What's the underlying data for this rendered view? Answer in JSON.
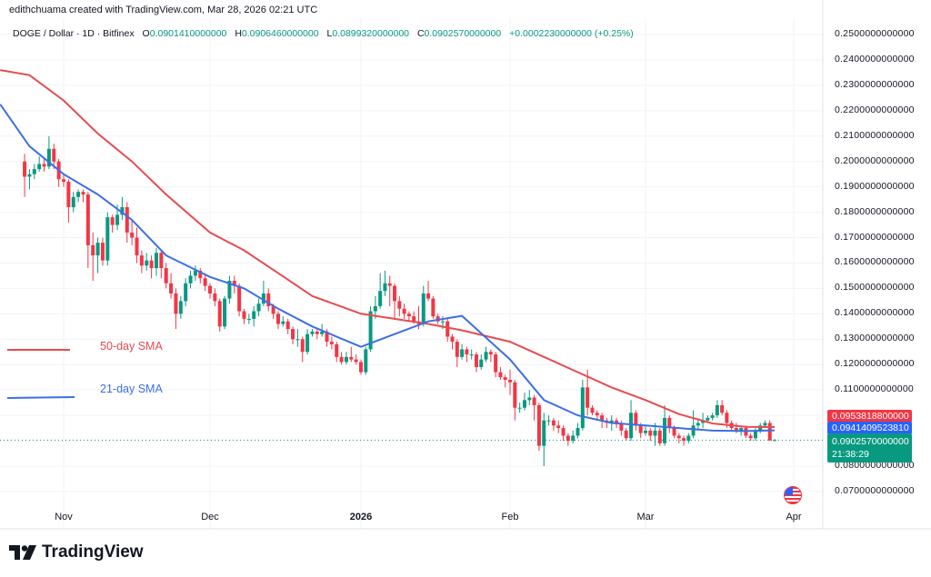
{
  "attribution": "edithchuama created with TradingView.com, Mar 28, 2026 02:21 UTC",
  "legend": {
    "symbol": "DOGE / Dollar · 1D · Bitfinex",
    "o_label": "O",
    "o": "0.0901410000000",
    "h_label": "H",
    "h": "0.0906460000000",
    "l_label": "L",
    "l": "0.0899320000000",
    "c_label": "C",
    "c": "0.0902570000000",
    "change": "+0.0002230000000 (+0.25%)"
  },
  "price_axis": [
    "0.2500000000000",
    "0.2400000000000",
    "0.2300000000000",
    "0.2200000000000",
    "0.2100000000000",
    "0.2000000000000",
    "0.1900000000000",
    "0.1800000000000",
    "0.1700000000000",
    "0.1600000000000",
    "0.1500000000000",
    "0.1400000000000",
    "0.1300000000000",
    "0.1200000000000",
    "0.1100000000000",
    "0.0800000000000",
    "0.0700000000000"
  ],
  "price_markers": {
    "sma50": "0.0953818800000",
    "sma21": "0.0941409523810",
    "last": "0.0902570000000",
    "countdown": "21:38:29"
  },
  "time_axis": [
    "Nov",
    "Dec",
    "2026",
    "Feb",
    "Mar",
    "Apr"
  ],
  "sma_labels": {
    "sma50": "50-day SMA",
    "sma21": "21-day SMA"
  },
  "logo_text": "TradingView",
  "colors": {
    "up": "#089981",
    "down": "#f23645",
    "sma50": "#e84b4f",
    "sma21": "#3b6fe6",
    "grid": "#f0f3fa"
  },
  "icons": {
    "events": "us-flag-icon",
    "logo": "tradingview-logo-icon"
  },
  "chart_data": {
    "type": "candlestick",
    "symbol": "DOGE / Dollar",
    "interval": "1D",
    "last_date": "2026-03-28",
    "ylim": [
      0.065,
      0.255
    ],
    "grid": true,
    "ohlc": [
      [
        0.2,
        0.203,
        0.186,
        0.194
      ],
      [
        0.194,
        0.197,
        0.189,
        0.195
      ],
      [
        0.195,
        0.199,
        0.193,
        0.197
      ],
      [
        0.197,
        0.202,
        0.196,
        0.199
      ],
      [
        0.199,
        0.201,
        0.196,
        0.198
      ],
      [
        0.198,
        0.21,
        0.197,
        0.205
      ],
      [
        0.205,
        0.207,
        0.197,
        0.2
      ],
      [
        0.2,
        0.201,
        0.19,
        0.193
      ],
      [
        0.193,
        0.195,
        0.19,
        0.192
      ],
      [
        0.192,
        0.193,
        0.176,
        0.182
      ],
      [
        0.182,
        0.188,
        0.18,
        0.186
      ],
      [
        0.186,
        0.189,
        0.184,
        0.188
      ],
      [
        0.188,
        0.189,
        0.184,
        0.187
      ],
      [
        0.187,
        0.188,
        0.158,
        0.167
      ],
      [
        0.167,
        0.172,
        0.153,
        0.163
      ],
      [
        0.163,
        0.17,
        0.156,
        0.168
      ],
      [
        0.168,
        0.17,
        0.159,
        0.161
      ],
      [
        0.161,
        0.18,
        0.159,
        0.178
      ],
      [
        0.178,
        0.179,
        0.172,
        0.175
      ],
      [
        0.175,
        0.183,
        0.173,
        0.179
      ],
      [
        0.179,
        0.186,
        0.177,
        0.182
      ],
      [
        0.182,
        0.184,
        0.168,
        0.172
      ],
      [
        0.172,
        0.177,
        0.167,
        0.17
      ],
      [
        0.17,
        0.174,
        0.16,
        0.163
      ],
      [
        0.163,
        0.165,
        0.156,
        0.159
      ],
      [
        0.159,
        0.164,
        0.157,
        0.161
      ],
      [
        0.161,
        0.163,
        0.154,
        0.158
      ],
      [
        0.158,
        0.166,
        0.155,
        0.164
      ],
      [
        0.164,
        0.165,
        0.154,
        0.158
      ],
      [
        0.158,
        0.16,
        0.15,
        0.152
      ],
      [
        0.152,
        0.156,
        0.146,
        0.148
      ],
      [
        0.148,
        0.15,
        0.134,
        0.14
      ],
      [
        0.14,
        0.147,
        0.138,
        0.145
      ],
      [
        0.145,
        0.154,
        0.143,
        0.152
      ],
      [
        0.152,
        0.157,
        0.15,
        0.155
      ],
      [
        0.155,
        0.159,
        0.153,
        0.157
      ],
      [
        0.157,
        0.158,
        0.152,
        0.154
      ],
      [
        0.154,
        0.156,
        0.149,
        0.151
      ],
      [
        0.151,
        0.152,
        0.146,
        0.148
      ],
      [
        0.148,
        0.15,
        0.143,
        0.145
      ],
      [
        0.145,
        0.146,
        0.133,
        0.135
      ],
      [
        0.135,
        0.147,
        0.134,
        0.146
      ],
      [
        0.146,
        0.155,
        0.144,
        0.153
      ],
      [
        0.153,
        0.155,
        0.148,
        0.151
      ],
      [
        0.151,
        0.152,
        0.139,
        0.141
      ],
      [
        0.141,
        0.142,
        0.136,
        0.138
      ],
      [
        0.138,
        0.14,
        0.136,
        0.138
      ],
      [
        0.138,
        0.143,
        0.135,
        0.141
      ],
      [
        0.141,
        0.146,
        0.139,
        0.144
      ],
      [
        0.144,
        0.153,
        0.143,
        0.148
      ],
      [
        0.148,
        0.15,
        0.141,
        0.143
      ],
      [
        0.143,
        0.144,
        0.138,
        0.14
      ],
      [
        0.14,
        0.141,
        0.134,
        0.136
      ],
      [
        0.136,
        0.139,
        0.135,
        0.137
      ],
      [
        0.137,
        0.138,
        0.132,
        0.134
      ],
      [
        0.134,
        0.135,
        0.128,
        0.13
      ],
      [
        0.13,
        0.134,
        0.127,
        0.13
      ],
      [
        0.13,
        0.131,
        0.121,
        0.125
      ],
      [
        0.125,
        0.134,
        0.124,
        0.132
      ],
      [
        0.132,
        0.134,
        0.131,
        0.133
      ],
      [
        0.133,
        0.134,
        0.13,
        0.132
      ],
      [
        0.132,
        0.136,
        0.131,
        0.133
      ],
      [
        0.133,
        0.134,
        0.127,
        0.129
      ],
      [
        0.129,
        0.131,
        0.126,
        0.128
      ],
      [
        0.128,
        0.129,
        0.121,
        0.123
      ],
      [
        0.123,
        0.125,
        0.12,
        0.121
      ],
      [
        0.121,
        0.125,
        0.12,
        0.123
      ],
      [
        0.123,
        0.127,
        0.121,
        0.122
      ],
      [
        0.122,
        0.124,
        0.12,
        0.121
      ],
      [
        0.121,
        0.122,
        0.116,
        0.117
      ],
      [
        0.117,
        0.127,
        0.116,
        0.126
      ],
      [
        0.126,
        0.143,
        0.125,
        0.141
      ],
      [
        0.141,
        0.147,
        0.138,
        0.143
      ],
      [
        0.143,
        0.156,
        0.142,
        0.149
      ],
      [
        0.149,
        0.157,
        0.147,
        0.152
      ],
      [
        0.152,
        0.155,
        0.143,
        0.151
      ],
      [
        0.151,
        0.152,
        0.138,
        0.145
      ],
      [
        0.145,
        0.147,
        0.139,
        0.142
      ],
      [
        0.142,
        0.144,
        0.138,
        0.14
      ],
      [
        0.14,
        0.141,
        0.137,
        0.139
      ],
      [
        0.139,
        0.141,
        0.136,
        0.137
      ],
      [
        0.137,
        0.143,
        0.134,
        0.136
      ],
      [
        0.136,
        0.151,
        0.135,
        0.148
      ],
      [
        0.148,
        0.153,
        0.145,
        0.146
      ],
      [
        0.146,
        0.147,
        0.138,
        0.139
      ],
      [
        0.139,
        0.14,
        0.136,
        0.137
      ],
      [
        0.137,
        0.139,
        0.134,
        0.137
      ],
      [
        0.137,
        0.138,
        0.129,
        0.131
      ],
      [
        0.131,
        0.132,
        0.126,
        0.129
      ],
      [
        0.129,
        0.13,
        0.119,
        0.123
      ],
      [
        0.123,
        0.128,
        0.122,
        0.126
      ],
      [
        0.126,
        0.127,
        0.121,
        0.124
      ],
      [
        0.124,
        0.126,
        0.122,
        0.124
      ],
      [
        0.124,
        0.125,
        0.117,
        0.119
      ],
      [
        0.119,
        0.124,
        0.118,
        0.122
      ],
      [
        0.122,
        0.127,
        0.121,
        0.125
      ],
      [
        0.125,
        0.126,
        0.121,
        0.124
      ],
      [
        0.124,
        0.125,
        0.115,
        0.117
      ],
      [
        0.117,
        0.119,
        0.114,
        0.115
      ],
      [
        0.115,
        0.116,
        0.111,
        0.114
      ],
      [
        0.114,
        0.118,
        0.108,
        0.113
      ],
      [
        0.113,
        0.114,
        0.098,
        0.103
      ],
      [
        0.103,
        0.105,
        0.101,
        0.103
      ],
      [
        0.103,
        0.109,
        0.102,
        0.106
      ],
      [
        0.106,
        0.11,
        0.104,
        0.107
      ],
      [
        0.107,
        0.108,
        0.098,
        0.104
      ],
      [
        0.104,
        0.105,
        0.086,
        0.088
      ],
      [
        0.088,
        0.101,
        0.08,
        0.098
      ],
      [
        0.098,
        0.1,
        0.096,
        0.098
      ],
      [
        0.098,
        0.099,
        0.094,
        0.096
      ],
      [
        0.096,
        0.098,
        0.093,
        0.095
      ],
      [
        0.095,
        0.096,
        0.09,
        0.092
      ],
      [
        0.092,
        0.093,
        0.088,
        0.09
      ],
      [
        0.09,
        0.094,
        0.089,
        0.092
      ],
      [
        0.092,
        0.097,
        0.091,
        0.095
      ],
      [
        0.095,
        0.114,
        0.094,
        0.111
      ],
      [
        0.111,
        0.118,
        0.1,
        0.103
      ],
      [
        0.103,
        0.104,
        0.1,
        0.101
      ],
      [
        0.101,
        0.102,
        0.098,
        0.1
      ],
      [
        0.1,
        0.101,
        0.095,
        0.098
      ],
      [
        0.098,
        0.099,
        0.095,
        0.097
      ],
      [
        0.097,
        0.1,
        0.094,
        0.098
      ],
      [
        0.098,
        0.099,
        0.095,
        0.097
      ],
      [
        0.097,
        0.098,
        0.092,
        0.094
      ],
      [
        0.094,
        0.095,
        0.09,
        0.091
      ],
      [
        0.091,
        0.106,
        0.09,
        0.101
      ],
      [
        0.101,
        0.102,
        0.094,
        0.096
      ],
      [
        0.096,
        0.097,
        0.091,
        0.093
      ],
      [
        0.093,
        0.096,
        0.092,
        0.094
      ],
      [
        0.094,
        0.095,
        0.09,
        0.092
      ],
      [
        0.092,
        0.097,
        0.088,
        0.094
      ],
      [
        0.094,
        0.095,
        0.088,
        0.089
      ],
      [
        0.089,
        0.104,
        0.088,
        0.099
      ],
      [
        0.099,
        0.1,
        0.093,
        0.095
      ],
      [
        0.095,
        0.096,
        0.091,
        0.092
      ],
      [
        0.092,
        0.093,
        0.089,
        0.091
      ],
      [
        0.091,
        0.092,
        0.088,
        0.09
      ],
      [
        0.09,
        0.093,
        0.089,
        0.092
      ],
      [
        0.092,
        0.102,
        0.091,
        0.096
      ],
      [
        0.096,
        0.098,
        0.094,
        0.097
      ],
      [
        0.097,
        0.101,
        0.095,
        0.098
      ],
      [
        0.098,
        0.1,
        0.097,
        0.099
      ],
      [
        0.099,
        0.101,
        0.098,
        0.1
      ],
      [
        0.1,
        0.106,
        0.099,
        0.104
      ],
      [
        0.104,
        0.106,
        0.1,
        0.101
      ],
      [
        0.101,
        0.102,
        0.095,
        0.097
      ],
      [
        0.097,
        0.098,
        0.094,
        0.095
      ],
      [
        0.095,
        0.097,
        0.093,
        0.094
      ],
      [
        0.094,
        0.096,
        0.092,
        0.095
      ],
      [
        0.095,
        0.096,
        0.091,
        0.092
      ],
      [
        0.092,
        0.093,
        0.09,
        0.091
      ],
      [
        0.091,
        0.095,
        0.09,
        0.094
      ],
      [
        0.094,
        0.097,
        0.093,
        0.096
      ],
      [
        0.096,
        0.098,
        0.095,
        0.097
      ],
      [
        0.097,
        0.098,
        0.09,
        0.0901
      ],
      [
        0.09014,
        0.09065,
        0.08993,
        0.09026
      ]
    ],
    "series": [
      {
        "name": "50-day SMA",
        "points": [
          [
            "2025-10-19",
            0.236
          ],
          [
            "2025-10-25",
            0.234
          ],
          [
            "2025-11-01",
            0.224
          ],
          [
            "2025-11-08",
            0.211
          ],
          [
            "2025-11-15",
            0.2
          ],
          [
            "2025-11-22",
            0.187
          ],
          [
            "2025-12-01",
            0.172
          ],
          [
            "2025-12-08",
            0.165
          ],
          [
            "2025-12-15",
            0.156
          ],
          [
            "2025-12-22",
            0.147
          ],
          [
            "2026-01-01",
            0.14
          ],
          [
            "2026-01-08",
            0.138
          ],
          [
            "2026-01-15",
            0.136
          ],
          [
            "2026-01-22",
            0.1335
          ],
          [
            "2026-02-01",
            0.129
          ],
          [
            "2026-02-08",
            0.123
          ],
          [
            "2026-02-15",
            0.117
          ],
          [
            "2026-02-22",
            0.111
          ],
          [
            "2026-03-01",
            0.106
          ],
          [
            "2026-03-08",
            0.1005
          ],
          [
            "2026-03-15",
            0.0968
          ],
          [
            "2026-03-22",
            0.0955
          ],
          [
            "2026-03-28",
            0.0954
          ]
        ]
      },
      {
        "name": "21-day SMA",
        "points": [
          [
            "2025-10-19",
            0.2225
          ],
          [
            "2025-10-25",
            0.206
          ],
          [
            "2025-11-01",
            0.195
          ],
          [
            "2025-11-08",
            0.187
          ],
          [
            "2025-11-15",
            0.177
          ],
          [
            "2025-11-22",
            0.163
          ],
          [
            "2025-12-01",
            0.1545
          ],
          [
            "2025-12-08",
            0.15
          ],
          [
            "2025-12-15",
            0.142
          ],
          [
            "2025-12-22",
            0.135
          ],
          [
            "2026-01-01",
            0.127
          ],
          [
            "2026-01-08",
            0.132
          ],
          [
            "2026-01-15",
            0.137
          ],
          [
            "2026-01-22",
            0.1392
          ],
          [
            "2026-02-01",
            0.122
          ],
          [
            "2026-02-08",
            0.106
          ],
          [
            "2026-02-15",
            0.1
          ],
          [
            "2026-02-22",
            0.097
          ],
          [
            "2026-03-01",
            0.096
          ],
          [
            "2026-03-08",
            0.095
          ],
          [
            "2026-03-15",
            0.094
          ],
          [
            "2026-03-22",
            0.0938
          ],
          [
            "2026-03-28",
            0.0941
          ]
        ]
      }
    ]
  }
}
